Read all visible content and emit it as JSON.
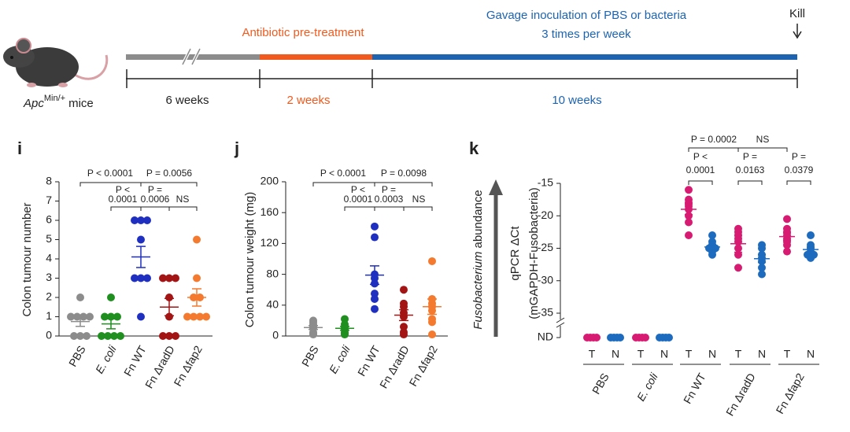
{
  "timeline": {
    "phase1": "Antibiotic pre-treatment",
    "phase2_line1": "Gavage inoculation of PBS or bacteria",
    "phase2_line2": "3 times per week",
    "end": "Kill",
    "durations": [
      "6 weeks",
      "2 weeks",
      "10 weeks"
    ],
    "mouse_label": {
      "gene": "Apc",
      "superscript": "Min/+",
      "suffix": "mice"
    }
  },
  "chart_data": [
    {
      "type": "strip",
      "panel": "i",
      "y_label": "Colon tumour number",
      "categories": [
        "PBS",
        "E. coli",
        "Fn WT",
        "Fn ΔradD",
        "Fn Δfap2"
      ],
      "colors": [
        "#8c8c8c",
        "#1f8f1f",
        "#1f2fbf",
        "#a31515",
        "#f47a30"
      ],
      "points": [
        [
          2,
          1,
          1,
          1,
          1,
          0,
          0,
          0
        ],
        [
          2,
          1,
          1,
          1,
          0,
          0,
          0,
          0
        ],
        [
          6,
          6,
          6,
          5,
          3,
          3,
          3,
          1
        ],
        [
          3,
          3,
          3,
          2,
          1,
          0,
          0,
          0
        ],
        [
          5,
          3,
          2,
          2,
          1,
          1,
          1,
          1
        ]
      ],
      "mean": [
        0.75,
        0.63,
        4.1,
        1.5,
        2
      ],
      "sem": [
        0.25,
        0.26,
        0.55,
        0.45,
        0.45
      ],
      "ylim": [
        0,
        8
      ],
      "yticks": [
        0,
        1,
        2,
        3,
        4,
        5,
        6,
        7,
        8
      ],
      "annotations": [
        "P < 0.0001",
        "P = 0.0056",
        "P <",
        "0.0001",
        "P =",
        "0.0006",
        "NS"
      ]
    },
    {
      "type": "strip",
      "panel": "j",
      "y_label": "Colon tumour weight (mg)",
      "categories": [
        "PBS",
        "E. coli",
        "Fn WT",
        "Fn ΔradD",
        "Fn Δfap2"
      ],
      "colors": [
        "#8c8c8c",
        "#1f8f1f",
        "#1f2fbf",
        "#a31515",
        "#f47a30"
      ],
      "points": [
        [
          20,
          18,
          15,
          12,
          10,
          5,
          3,
          2
        ],
        [
          22,
          15,
          12,
          10,
          8,
          5,
          3,
          2
        ],
        [
          142,
          128,
          80,
          75,
          68,
          55,
          48,
          35
        ],
        [
          60,
          42,
          38,
          30,
          25,
          12,
          5,
          2
        ],
        [
          97,
          48,
          42,
          38,
          33,
          22,
          18,
          2
        ]
      ],
      "mean": [
        11,
        10,
        79,
        27,
        38
      ],
      "sem": [
        2.5,
        2.5,
        12,
        7,
        10
      ],
      "ylim": [
        0,
        200
      ],
      "yticks": [
        0,
        40,
        80,
        120,
        160,
        200
      ],
      "annotations": [
        "P < 0.0001",
        "P = 0.0098",
        "P <",
        "0.0001",
        "P =",
        "0.0003",
        "NS"
      ]
    },
    {
      "type": "grouped-strip",
      "panel": "k",
      "y_label": [
        "qPCR ΔCt",
        "(mGAPDH-Fusobacteria)"
      ],
      "side_label": [
        "Fusobacterium",
        "abundance"
      ],
      "categories": [
        "PBS",
        "E. coli",
        "Fn WT",
        "Fn ΔradD",
        "Fn Δfap2"
      ],
      "series": [
        {
          "name": "T",
          "color": "#d81b72",
          "values": [
            [
              "ND",
              "ND",
              "ND",
              "ND"
            ],
            [
              "ND",
              "ND",
              "ND",
              "ND"
            ],
            [
              -16,
              -17.5,
              -18,
              -18.5,
              -19,
              -20,
              -21,
              -23
            ],
            [
              -22,
              -22.5,
              -23,
              -23.5,
              -24,
              -25,
              -26,
              -28
            ],
            [
              -20.5,
              -22,
              -22.5,
              -23,
              -23.5,
              -24,
              -24.5,
              -25.5
            ]
          ],
          "mean": [
            null,
            null,
            -19,
            -24.3,
            -23.2
          ],
          "sem": [
            null,
            null,
            0.8,
            1.3,
            0.55
          ]
        },
        {
          "name": "N",
          "color": "#1c6bbf",
          "values": [
            [
              "ND",
              "ND",
              "ND",
              "ND"
            ],
            [
              "ND",
              "ND",
              "ND",
              "ND"
            ],
            [
              -23,
              -24,
              -24.5,
              -25,
              -25,
              -25.5,
              -26
            ],
            [
              -24.5,
              -25,
              -26,
              -26.5,
              -27,
              -28,
              -29
            ],
            [
              -23,
              -24.5,
              -25,
              -25.5,
              -26,
              -26,
              -26.5
            ]
          ],
          "mean": [
            null,
            null,
            -24.8,
            -26.6,
            -25.2
          ],
          "sem": [
            null,
            null,
            0.4,
            0.6,
            0.4
          ]
        }
      ],
      "ylim": [
        -35,
        -15
      ],
      "yticks": [
        -35,
        -30,
        -25,
        -20,
        -15
      ],
      "nd_label": "ND",
      "annotations": [
        "P = 0.0002",
        "NS",
        "P <",
        "0.0001",
        "P =",
        "0.0163",
        "P =",
        "0.0379"
      ]
    }
  ]
}
